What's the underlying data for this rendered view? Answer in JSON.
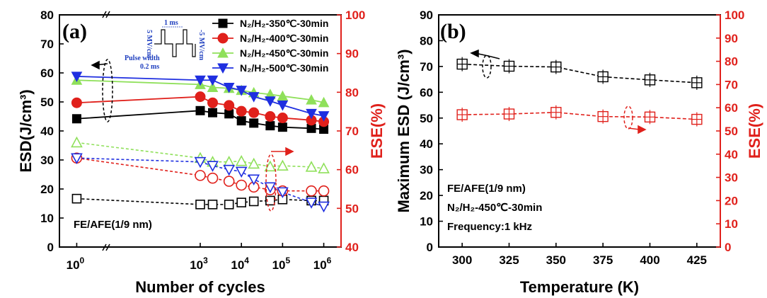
{
  "chart_data": [
    {
      "panel": "(a)",
      "type": "line",
      "xscale": "log",
      "x": [
        1,
        1000,
        2000,
        5000,
        10000,
        20000,
        50000,
        100000,
        500000,
        1000000
      ],
      "xticks": [
        {
          "v": 1,
          "base": "10",
          "exp": "0"
        },
        {
          "v": 1000,
          "base": "10",
          "exp": "3"
        },
        {
          "v": 10000,
          "base": "10",
          "exp": "4"
        },
        {
          "v": 100000,
          "base": "10",
          "exp": "5"
        },
        {
          "v": 1000000,
          "base": "10",
          "exp": "6"
        }
      ],
      "xlabel": "Number of cycles",
      "ylabel": "ESD(J/cm³)",
      "ylim": [
        0,
        80
      ],
      "yticks": [
        0,
        10,
        20,
        30,
        40,
        50,
        60,
        70,
        80
      ],
      "y2label": "ESE(%)",
      "y2lim": [
        40,
        100
      ],
      "y2ticks": [
        40,
        50,
        60,
        70,
        80,
        90,
        100
      ],
      "annotation": "FE/AFE(1/9 nm)",
      "series": [
        {
          "name": "N₂/H₂-350℃-30min",
          "axis": "ESD",
          "color": "#000000",
          "marker": "square",
          "filled": true,
          "values": [
            44.2,
            47.0,
            46.3,
            45.9,
            43.5,
            42.7,
            41.8,
            41.3,
            40.9,
            40.6
          ]
        },
        {
          "name": "N₂/H₂-400℃-30min",
          "axis": "ESD",
          "color": "#e0201b",
          "marker": "circle",
          "filled": true,
          "values": [
            49.7,
            51.8,
            49.7,
            48.8,
            46.8,
            46.3,
            45.0,
            44.5,
            43.7,
            43.2
          ]
        },
        {
          "name": "N₂/H₂-450℃-30min",
          "axis": "ESD",
          "color": "#8fe05a",
          "marker": "triangle-up",
          "filled": true,
          "values": [
            57.5,
            56.0,
            55.0,
            54.7,
            54.0,
            53.2,
            52.6,
            52.0,
            50.7,
            49.8
          ]
        },
        {
          "name": "N₂/H₂-500℃-30min",
          "axis": "ESD",
          "color": "#1f2fe0",
          "marker": "triangle-down",
          "filled": true,
          "values": [
            58.8,
            57.5,
            57.5,
            55.0,
            54.0,
            51.8,
            50.3,
            48.9,
            46.0,
            45.2
          ]
        },
        {
          "axis": "ESE",
          "color": "#000000",
          "marker": "square",
          "filled": false,
          "values": [
            52.5,
            51.0,
            51.0,
            51.0,
            51.5,
            51.8,
            52.0,
            52.3,
            52.0,
            52.0
          ]
        },
        {
          "axis": "ESE",
          "color": "#e0201b",
          "marker": "circle",
          "filled": false,
          "values": [
            63.0,
            58.5,
            57.8,
            57.0,
            56.0,
            55.5,
            54.8,
            54.5,
            54.5,
            54.5
          ]
        },
        {
          "axis": "ESE",
          "color": "#8fe05a",
          "marker": "triangle-up",
          "filled": false,
          "values": [
            67.0,
            63.0,
            62.0,
            62.0,
            62.2,
            61.5,
            60.8,
            61.0,
            60.7,
            60.3
          ]
        },
        {
          "axis": "ESE",
          "color": "#1f2fe0",
          "marker": "triangle-down",
          "filled": false,
          "values": [
            63.0,
            62.0,
            61.0,
            60.0,
            59.5,
            57.5,
            55.5,
            54.2,
            51.5,
            50.5
          ]
        }
      ],
      "inset": {
        "pulse_period": "1 ms",
        "pos_field": "5 MV/cm",
        "neg_field": "-5 MV/cm",
        "width_label": "Pulse width",
        "width_value": "0.2 ms"
      }
    },
    {
      "panel": "(b)",
      "type": "line",
      "x": [
        300,
        325,
        350,
        375,
        400,
        425
      ],
      "xticks": [
        300,
        325,
        350,
        375,
        400,
        425
      ],
      "xlim": [
        287.5,
        437.5
      ],
      "xlabel": "Temperature (K)",
      "ylabel": "Maximum ESD (J/cm³)",
      "ylim": [
        0,
        90
      ],
      "yticks": [
        0,
        10,
        20,
        30,
        40,
        50,
        60,
        70,
        80,
        90
      ],
      "y2label": "ESE(%)",
      "y2lim": [
        0,
        100
      ],
      "y2ticks": [
        0,
        10,
        20,
        30,
        40,
        50,
        60,
        70,
        80,
        90,
        100
      ],
      "annotations": [
        "FE/AFE(1/9 nm)",
        "N₂/H₂-450℃-30min",
        "Frequency:1 kHz"
      ],
      "series": [
        {
          "axis": "ESD",
          "color": "#000000",
          "marker": "square-cross",
          "values": [
            70.9,
            70.1,
            69.8,
            66.0,
            64.8,
            63.7
          ]
        },
        {
          "axis": "ESE",
          "color": "#e0201b",
          "marker": "square-cross",
          "values": [
            57.0,
            57.3,
            58.0,
            56.2,
            56.0,
            55.0
          ]
        }
      ]
    }
  ]
}
